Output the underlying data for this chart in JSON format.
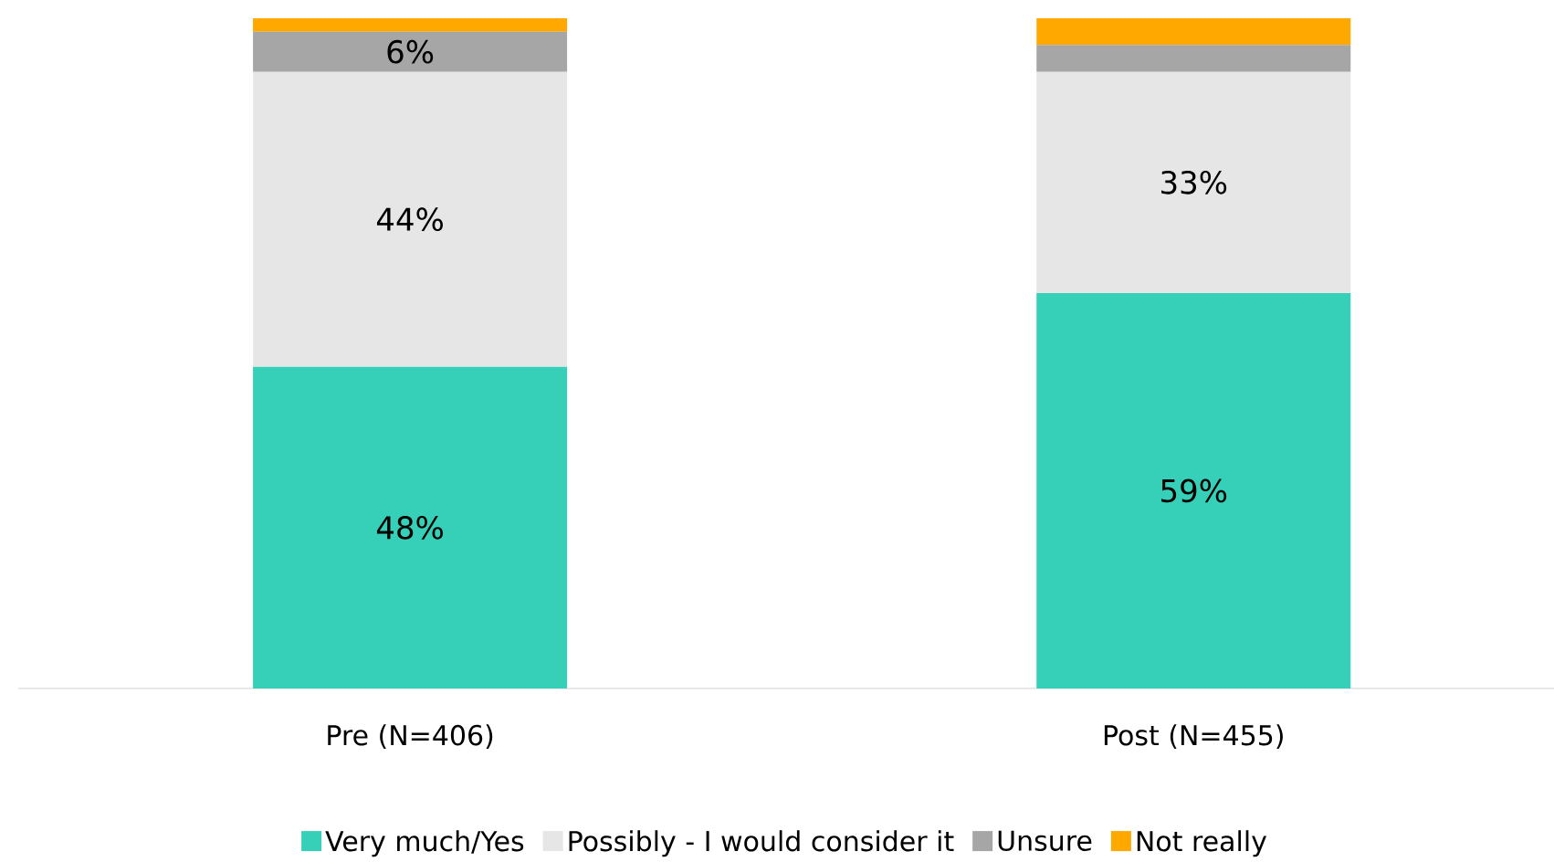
{
  "chart_data": {
    "type": "bar",
    "stacked": true,
    "legend": "bottom",
    "categories": [
      "Pre (N=406)",
      "Post (N=455)"
    ],
    "series": [
      {
        "name": "Very much/Yes",
        "color": "#36d0b8",
        "values": [
          48,
          59
        ],
        "value_labels": [
          "48%",
          "59%"
        ]
      },
      {
        "name": "Possibly - I would consider it",
        "color": "#e6e6e6",
        "values": [
          44,
          33
        ],
        "value_labels": [
          "44%",
          "33%"
        ]
      },
      {
        "name": "Unsure",
        "color": "#a6a6a6",
        "values": [
          6,
          4
        ],
        "value_labels": [
          "6%",
          null
        ]
      },
      {
        "name": "Not really",
        "color": "#ffa800",
        "values": [
          2,
          4
        ],
        "value_labels": [
          null,
          null
        ]
      }
    ]
  }
}
